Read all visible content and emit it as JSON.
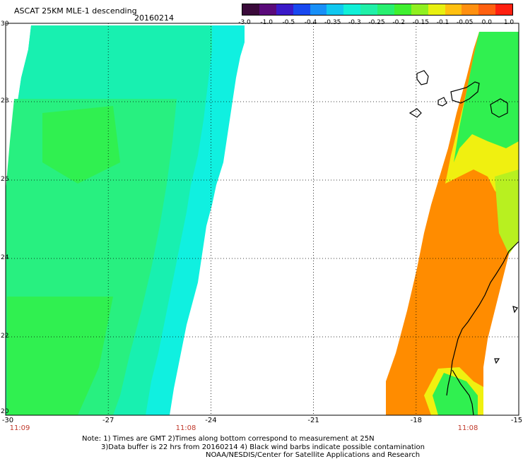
{
  "header": {
    "title": "ASCAT 25KM MLE-1 descending",
    "date": "20160214"
  },
  "colorbar": {
    "colors": [
      "#3a0a3a",
      "#5a0a7a",
      "#3a1ac8",
      "#1848f0",
      "#1890f8",
      "#10c8f0",
      "#10f0d8",
      "#20f0a8",
      "#28f070",
      "#40f030",
      "#90f020",
      "#e8f010",
      "#ffc010",
      "#ff9010",
      "#ff6010",
      "#ff2010"
    ],
    "labels": [
      "-3.0",
      "-1.0",
      "-0.5",
      "-0.4",
      "-0.35",
      "-0.3",
      "-0.25",
      "-0.2",
      "-0.15",
      "-0.1",
      "-0.05",
      "0.0",
      "1.0"
    ]
  },
  "map": {
    "lon_range": [
      -30,
      -15
    ],
    "lat_range": [
      20,
      30
    ],
    "lat_labels": [
      "30",
      "28",
      "26",
      "24",
      "22",
      "20"
    ],
    "lon_labels": [
      "-30",
      "-27",
      "-24",
      "-21",
      "-18",
      "-15"
    ],
    "swath_colors": {
      "cyan": "#10f0e0",
      "aqua_green": "#18f0b0",
      "green": "#28f080",
      "bright_green": "#30f050",
      "yellow_green": "#b8f020",
      "yellow": "#f0f010",
      "orange": "#ff8c00",
      "dark_orange": "#ff7800"
    }
  },
  "time_labels": [
    "11:09",
    "11:08",
    "11:08"
  ],
  "footer": {
    "line1": "Note: 1) Times are GMT 2)Times along bottom correspond to measurement at 25N",
    "line2": "3)Data buffer is 22 hrs from 20160214 4) Black wind barbs indicate possible contamination",
    "line3": "NOAA/NESDIS/Center for Satellite Applications and Research"
  }
}
